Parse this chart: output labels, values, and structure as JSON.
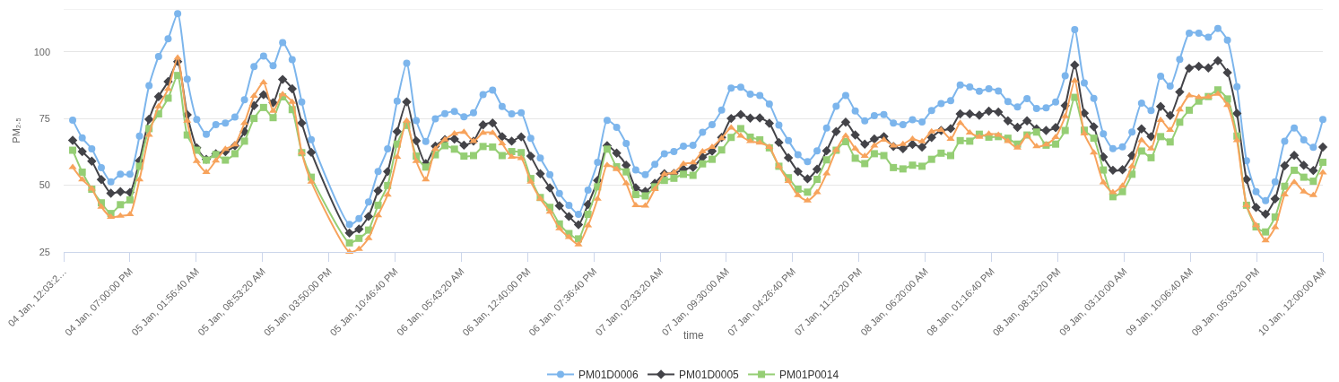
{
  "chart_data": {
    "type": "line",
    "xlabel": "time",
    "ylabel": "PM₂.₅",
    "x": [
      "--01-04T13:00",
      "--01-04T14:00",
      "--01-04T15:00",
      "--01-04T16:00",
      "--01-04T17:00",
      "--01-04T18:00",
      "--01-04T19:00",
      "--01-04T20:00",
      "--01-04T21:00",
      "--01-04T22:00",
      "--01-04T23:00",
      "--01-05T00:00",
      "--01-05T01:00",
      "--01-05T02:00",
      "--01-05T03:00",
      "--01-05T04:00",
      "--01-05T05:00",
      "--01-05T06:00",
      "--01-05T07:00",
      "--01-05T08:00",
      "--01-05T09:00",
      "--01-05T10:00",
      "--01-05T11:00",
      "--01-05T12:00",
      "--01-05T13:00",
      "--01-05T14:00",
      "--01-05T18:00",
      "--01-05T19:00",
      "--01-05T20:00",
      "--01-05T21:00",
      "--01-05T22:00",
      "--01-05T23:00",
      "--01-06T00:00",
      "--01-06T01:00",
      "--01-06T02:00",
      "--01-06T03:00",
      "--01-06T04:00",
      "--01-06T05:00",
      "--01-06T06:00",
      "--01-06T07:00",
      "--01-06T08:00",
      "--01-06T09:00",
      "--01-06T10:00",
      "--01-06T11:00",
      "--01-06T12:00",
      "--01-06T13:00",
      "--01-06T14:00",
      "--01-06T15:00",
      "--01-06T16:00",
      "--01-06T17:00",
      "--01-06T18:00",
      "--01-06T19:00",
      "--01-06T20:00",
      "--01-06T21:00",
      "--01-06T22:00",
      "--01-06T23:00",
      "--01-07T00:00",
      "--01-07T01:00",
      "--01-07T02:00",
      "--01-07T03:00",
      "--01-07T04:00",
      "--01-07T05:00",
      "--01-07T06:00",
      "--01-07T07:00",
      "--01-07T08:00",
      "--01-07T09:00",
      "--01-07T10:00",
      "--01-07T11:00",
      "--01-07T12:00",
      "--01-07T13:00",
      "--01-07T14:00",
      "--01-07T15:00",
      "--01-07T16:00",
      "--01-07T17:00",
      "--01-07T18:00",
      "--01-07T19:00",
      "--01-07T20:00",
      "--01-07T21:00",
      "--01-07T22:00",
      "--01-07T23:00",
      "--01-08T00:00",
      "--01-08T01:00",
      "--01-08T02:00",
      "--01-08T03:00",
      "--01-08T04:00",
      "--01-08T05:00",
      "--01-08T06:00",
      "--01-08T07:00",
      "--01-08T08:00",
      "--01-08T09:00",
      "--01-08T10:00",
      "--01-08T11:00",
      "--01-08T12:00",
      "--01-08T13:00",
      "--01-08T14:00",
      "--01-08T15:00",
      "--01-08T16:00",
      "--01-08T17:00",
      "--01-08T18:00",
      "--01-08T19:00",
      "--01-08T20:00",
      "--01-08T21:00",
      "--01-08T22:00",
      "--01-08T23:00",
      "--01-09T00:00",
      "--01-09T01:00",
      "--01-09T02:00",
      "--01-09T03:00",
      "--01-09T04:00",
      "--01-09T05:00",
      "--01-09T06:00",
      "--01-09T07:00",
      "--01-09T08:00",
      "--01-09T09:00",
      "--01-09T10:00",
      "--01-09T11:00",
      "--01-09T12:00",
      "--01-09T13:00",
      "--01-09T14:00",
      "--01-09T15:00",
      "--01-09T16:00",
      "--01-09T17:00",
      "--01-09T18:00",
      "--01-09T19:00",
      "--01-09T20:00",
      "--01-09T21:00",
      "--01-09T22:00",
      "--01-09T23:00",
      "--01-10T00:00"
    ],
    "series": [
      {
        "name": "PM01D0006",
        "color": "#7cb5ec",
        "marker": "circle",
        "values": [
          74.4,
          67.7,
          63.6,
          56.6,
          51.3,
          54.1,
          54.1,
          68.4,
          87.3,
          98.2,
          104.8,
          114.2,
          89.7,
          74.6,
          69.1,
          72.7,
          73.3,
          75.5,
          82.0,
          94.4,
          98.4,
          94.8,
          103.4,
          97.0,
          81.2,
          67.1,
          35.3,
          37.5,
          43.7,
          55.1,
          63.6,
          81.5,
          95.7,
          74.2,
          66.4,
          74.9,
          76.8,
          77.6,
          75.6,
          77.1,
          83.9,
          85.6,
          79.5,
          76.7,
          77.1,
          67.6,
          60.2,
          54.0,
          46.9,
          42.5,
          39.1,
          48.2,
          58.6,
          74.3,
          71.7,
          65.6,
          55.7,
          54.0,
          57.8,
          61.8,
          62.6,
          64.6,
          65.0,
          69.8,
          72.7,
          78.1,
          86.4,
          86.7,
          84.1,
          83.6,
          80.4,
          72.5,
          66.7,
          61.4,
          58.8,
          62.9,
          71.4,
          79.6,
          83.6,
          77.8,
          74.1,
          76.0,
          76.5,
          73.3,
          72.7,
          74.5,
          73.7,
          78.0,
          80.6,
          81.7,
          87.5,
          86.8,
          85.2,
          86.1,
          85.3,
          81.3,
          79.3,
          82.4,
          78.7,
          79.0,
          81.2,
          91.0,
          108.3,
          88.3,
          82.5,
          69.2,
          63.7,
          64.4,
          69.9,
          80.7,
          78.0,
          90.8,
          87.1,
          97.1,
          106.9,
          106.9,
          105.4,
          108.7,
          104.3,
          86.9,
          59.2,
          47.6,
          44.2,
          51.3,
          66.5,
          71.4,
          67.0,
          64.2,
          74.6
        ]
      },
      {
        "name": "PM01D0005",
        "color": "#434348",
        "marker": "diamond",
        "values": [
          66.8,
          62.6,
          59.0,
          52.1,
          47.0,
          47.6,
          47.3,
          59.2,
          74.7,
          83.2,
          88.8,
          96.3,
          76.4,
          64.0,
          59.7,
          61.8,
          62.6,
          64.8,
          70.1,
          79.8,
          83.9,
          80.9,
          89.6,
          86.1,
          73.3,
          62.3,
          32.1,
          33.6,
          38.3,
          47.9,
          55.1,
          70.1,
          81.2,
          66.6,
          58.1,
          64.6,
          67.1,
          67.3,
          65.0,
          66.5,
          72.6,
          73.3,
          68.2,
          66.5,
          68.1,
          60.9,
          54.3,
          49.0,
          42.3,
          38.3,
          35.2,
          42.8,
          51.8,
          64.8,
          62.0,
          57.5,
          49.0,
          47.7,
          50.7,
          54.3,
          54.4,
          56.0,
          56.7,
          60.5,
          62.8,
          67.9,
          75.0,
          76.5,
          75.1,
          75.2,
          73.2,
          66.0,
          60.3,
          55.1,
          52.4,
          56.0,
          62.9,
          70.1,
          73.6,
          68.8,
          65.4,
          67.3,
          68.2,
          64.5,
          63.7,
          65.3,
          64.3,
          67.9,
          70.5,
          71.2,
          76.7,
          76.7,
          76.2,
          77.7,
          77.4,
          74.1,
          71.7,
          74.1,
          71.1,
          70.5,
          71.6,
          79.8,
          95.0,
          77.0,
          71.9,
          60.6,
          55.6,
          55.8,
          61.1,
          71.1,
          68.2,
          79.5,
          76.1,
          84.9,
          93.8,
          94.5,
          93.9,
          96.6,
          92.2,
          76.9,
          52.2,
          41.7,
          39.2,
          44.9,
          57.3,
          61.2,
          57.5,
          55.5,
          64.3
        ]
      },
      {
        "name": "PM01P0014",
        "color": "#95ce74",
        "marker": "square",
        "values": [
          63.1,
          54.9,
          48.5,
          43.4,
          39.4,
          42.7,
          44.5,
          57.1,
          71.2,
          76.7,
          82.6,
          91.1,
          68.8,
          63.1,
          59.4,
          61.5,
          59.4,
          61.8,
          66.5,
          75.0,
          79.1,
          75.3,
          83.1,
          78.3,
          62.2,
          53.0,
          28.4,
          30.1,
          33.2,
          42.5,
          49.9,
          65.4,
          72.4,
          60.9,
          56.8,
          61.4,
          64.8,
          63.5,
          60.9,
          61.1,
          64.5,
          64.3,
          61.1,
          62.6,
          62.2,
          52.5,
          45.4,
          41.7,
          35.5,
          31.9,
          29.9,
          39.1,
          49.4,
          63.5,
          56.9,
          55.0,
          46.5,
          46.0,
          49.4,
          51.8,
          52.6,
          54.1,
          53.7,
          58.0,
          59.7,
          63.2,
          67.9,
          71.2,
          68.0,
          67.0,
          64.0,
          57.1,
          52.8,
          48.5,
          47.4,
          52.2,
          59.5,
          63.1,
          66.3,
          60.1,
          58.1,
          61.8,
          61.1,
          56.6,
          56.1,
          57.5,
          57.1,
          59.7,
          62.0,
          61.1,
          66.7,
          66.5,
          69.1,
          68.0,
          68.2,
          67.6,
          65.4,
          68.8,
          69.9,
          65.0,
          65.4,
          70.5,
          82.9,
          70.6,
          67.6,
          55.7,
          45.7,
          47.6,
          54.1,
          62.8,
          60.3,
          68.2,
          66.2,
          73.6,
          78.1,
          81.5,
          83.2,
          85.7,
          82.3,
          68.4,
          42.5,
          34.4,
          32.5,
          38.1,
          49.6,
          55.6,
          53.0,
          51.5,
          58.6
        ]
      },
      {
        "color": "#f7a35c",
        "marker": "triangle",
        "values": [
          56.7,
          52.1,
          48.7,
          41.9,
          38.1,
          38.5,
          39.1,
          52.1,
          68.8,
          79.5,
          86.0,
          97.7,
          74.1,
          59.0,
          54.9,
          59.2,
          63.5,
          65.2,
          73.3,
          83.4,
          88.5,
          77.8,
          84.0,
          81.2,
          62.2,
          51.3,
          25.0,
          26.1,
          30.1,
          38.7,
          46.4,
          60.6,
          74.1,
          59.0,
          52.1,
          63.5,
          67.1,
          69.3,
          69.9,
          66.5,
          69.6,
          69.6,
          65.6,
          60.6,
          60.1,
          51.3,
          44.9,
          40.0,
          33.8,
          30.5,
          27.8,
          34.9,
          44.9,
          57.5,
          56.0,
          50.7,
          42.5,
          42.3,
          48.5,
          54.1,
          54.7,
          58.0,
          58.5,
          62.6,
          64.3,
          67.6,
          71.5,
          68.5,
          66.5,
          65.9,
          64.3,
          57.1,
          51.5,
          46.2,
          44.2,
          47.3,
          54.4,
          63.1,
          68.5,
          63.7,
          60.9,
          64.8,
          67.0,
          64.8,
          65.4,
          67.3,
          66.4,
          70.1,
          70.7,
          67.3,
          73.3,
          69.7,
          68.1,
          69.2,
          68.8,
          66.5,
          64.0,
          68.5,
          64.5,
          65.2,
          68.0,
          75.8,
          89.1,
          69.3,
          62.2,
          51.0,
          47.3,
          49.8,
          57.1,
          66.8,
          63.7,
          74.4,
          70.7,
          78.3,
          83.6,
          82.9,
          83.1,
          84.2,
          80.0,
          66.8,
          42.5,
          35.0,
          29.3,
          34.2,
          46.5,
          51.1,
          47.6,
          46.2,
          54.7
        ]
      }
    ],
    "xlim": [
      "--01-04T12:03:20",
      "--01-10T00:00:00"
    ],
    "xticks": [
      {
        "value": "--01-04T12:03:20",
        "label": "04 Jan, 12:03:2…"
      },
      {
        "value": "--01-04T19:00:00",
        "label": "04 Jan, 07:00:00 PM"
      },
      {
        "value": "--01-05T01:56:40",
        "label": "05 Jan, 01:56:40 AM"
      },
      {
        "value": "--01-05T08:53:20",
        "label": "05 Jan, 08:53:20 AM"
      },
      {
        "value": "--01-05T15:50:00",
        "label": "05 Jan, 03:50:00 PM"
      },
      {
        "value": "--01-05T22:46:40",
        "label": "05 Jan, 10:46:40 PM"
      },
      {
        "value": "--01-06T05:43:20",
        "label": "06 Jan, 05:43:20 AM"
      },
      {
        "value": "--01-06T12:40:00",
        "label": "06 Jan, 12:40:00 PM"
      },
      {
        "value": "--01-06T19:36:40",
        "label": "06 Jan, 07:36:40 PM"
      },
      {
        "value": "--01-07T02:33:20",
        "label": "07 Jan, 02:33:20 AM"
      },
      {
        "value": "--01-07T09:30:00",
        "label": "07 Jan, 09:30:00 AM"
      },
      {
        "value": "--01-07T16:26:40",
        "label": "07 Jan, 04:26:40 PM"
      },
      {
        "value": "--01-07T23:23:20",
        "label": "07 Jan, 11:23:20 PM"
      },
      {
        "value": "--01-08T06:20:00",
        "label": "08 Jan, 06:20:00 AM"
      },
      {
        "value": "--01-08T13:16:40",
        "label": "08 Jan, 01:16:40 PM"
      },
      {
        "value": "--01-08T20:13:20",
        "label": "08 Jan, 08:13:20 PM"
      },
      {
        "value": "--01-09T03:10:00",
        "label": "09 Jan, 03:10:00 AM"
      },
      {
        "value": "--01-09T10:06:40",
        "label": "09 Jan, 10:06:40 AM"
      },
      {
        "value": "--01-09T17:03:20",
        "label": "09 Jan, 05:03:20 PM"
      },
      {
        "value": "--01-10T00:00:00",
        "label": "10 Jan, 12:00:00 AM"
      }
    ],
    "ylim": [
      25,
      116
    ],
    "yticks": [
      25,
      50,
      75,
      100
    ],
    "grid": "y",
    "legend": "bottom",
    "line_style": "solid"
  }
}
